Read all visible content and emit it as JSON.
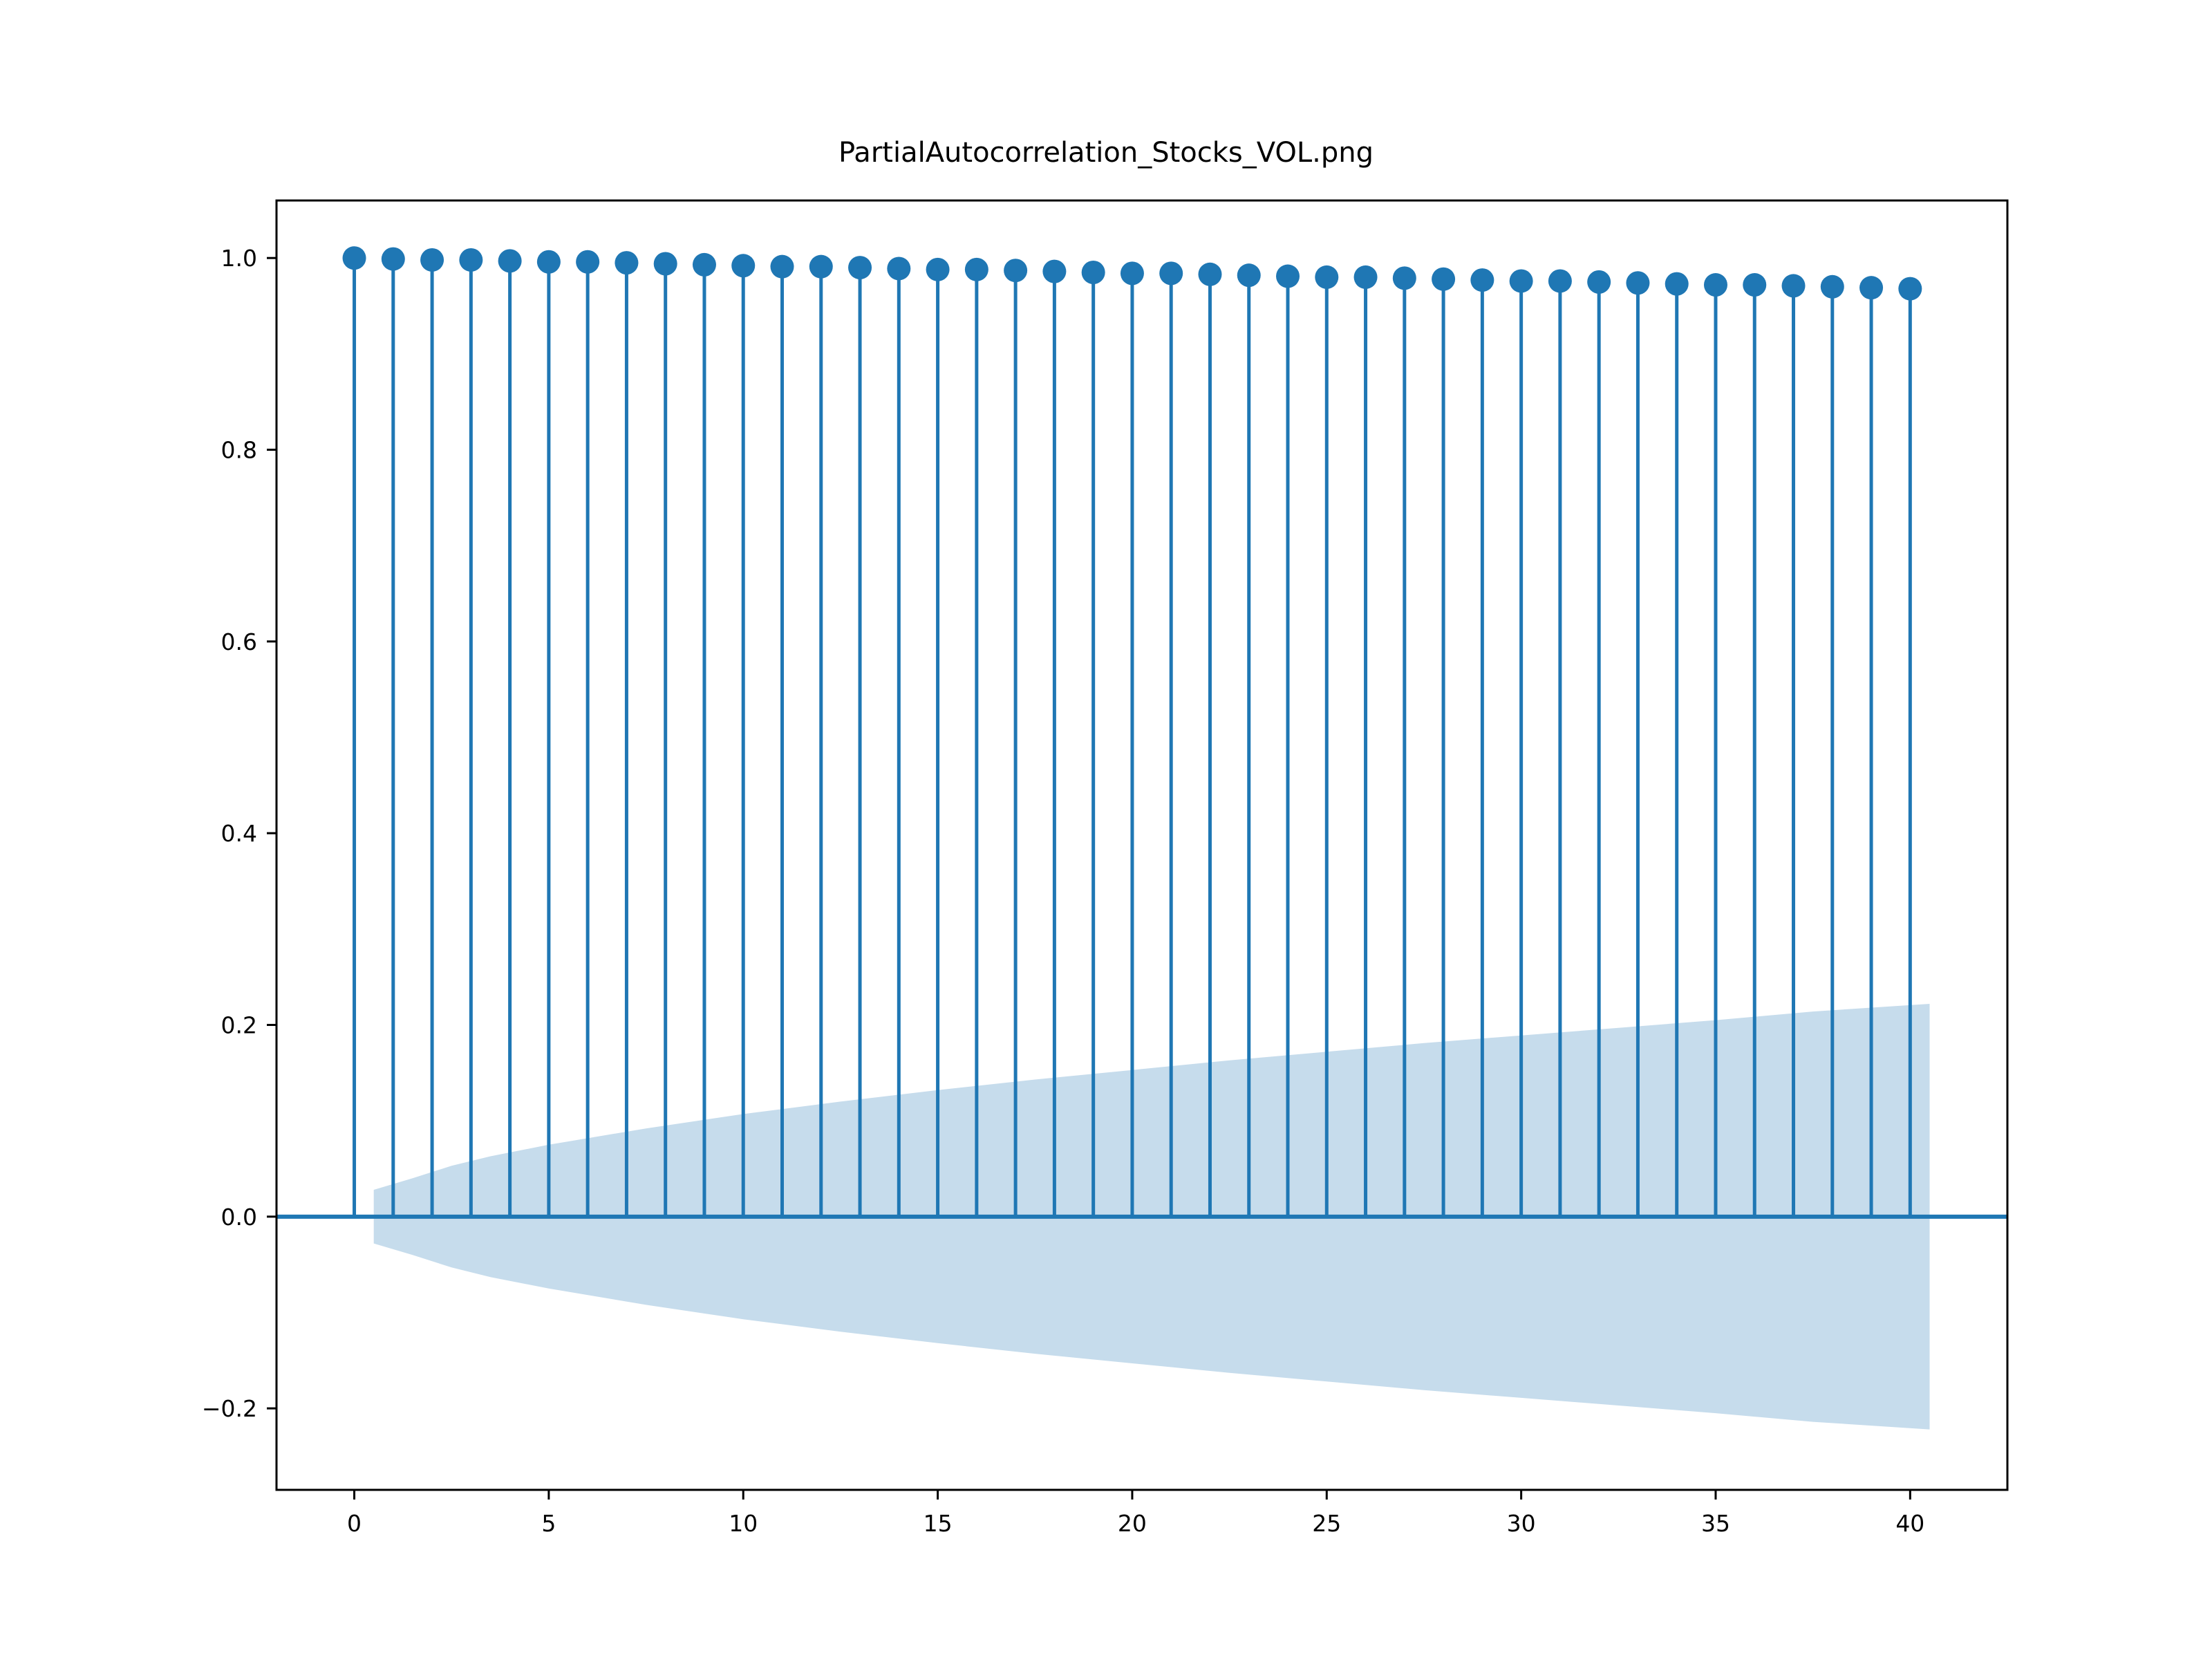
{
  "chart_data": {
    "type": "stem",
    "title": "PartialAutocorrelation_Stocks_VOL.png",
    "xlabel": "",
    "ylabel": "",
    "xlim": [
      -2,
      42.5
    ],
    "ylim": [
      -0.285,
      1.06
    ],
    "xticks": [
      0,
      5,
      10,
      15,
      20,
      25,
      30,
      35,
      40
    ],
    "yticks": [
      -0.2,
      0.0,
      0.2,
      0.4,
      0.6,
      0.8,
      1.0
    ],
    "ytick_labels": [
      "−0.2",
      "0.0",
      "0.2",
      "0.4",
      "0.6",
      "0.8",
      "1.0"
    ],
    "x": [
      0,
      1,
      2,
      3,
      4,
      5,
      6,
      7,
      8,
      9,
      10,
      11,
      12,
      13,
      14,
      15,
      16,
      17,
      18,
      19,
      20,
      21,
      22,
      23,
      24,
      25,
      26,
      27,
      28,
      29,
      30,
      31,
      32,
      33,
      34,
      35,
      36,
      37,
      38,
      39,
      40
    ],
    "values": [
      1.0,
      0.999,
      0.998,
      0.998,
      0.997,
      0.996,
      0.996,
      0.995,
      0.994,
      0.993,
      0.992,
      0.991,
      0.991,
      0.99,
      0.989,
      0.988,
      0.988,
      0.987,
      0.986,
      0.985,
      0.984,
      0.984,
      0.983,
      0.982,
      0.981,
      0.98,
      0.98,
      0.979,
      0.978,
      0.977,
      0.976,
      0.976,
      0.975,
      0.974,
      0.973,
      0.972,
      0.972,
      0.971,
      0.97,
      0.969,
      0.968
    ],
    "confidence_band": {
      "x": [
        0.5,
        1.5,
        2.5,
        3.5,
        5,
        7.5,
        10,
        12.5,
        15,
        17.5,
        20,
        22.5,
        25,
        27.5,
        30,
        32.5,
        35,
        37.5,
        40.5
      ],
      "upper": [
        0.028,
        0.04,
        0.053,
        0.063,
        0.075,
        0.092,
        0.107,
        0.12,
        0.132,
        0.143,
        0.153,
        0.163,
        0.172,
        0.181,
        0.189,
        0.197,
        0.205,
        0.214,
        0.222
      ],
      "lower": [
        -0.028,
        -0.04,
        -0.053,
        -0.063,
        -0.075,
        -0.092,
        -0.107,
        -0.12,
        -0.132,
        -0.143,
        -0.153,
        -0.163,
        -0.172,
        -0.181,
        -0.189,
        -0.197,
        -0.205,
        -0.214,
        -0.222
      ]
    },
    "grid": false,
    "colors": {
      "stem": "#1f77b4",
      "band": "#c6dcec",
      "zero_line": "#1f77b4",
      "axes": "#000000"
    }
  }
}
